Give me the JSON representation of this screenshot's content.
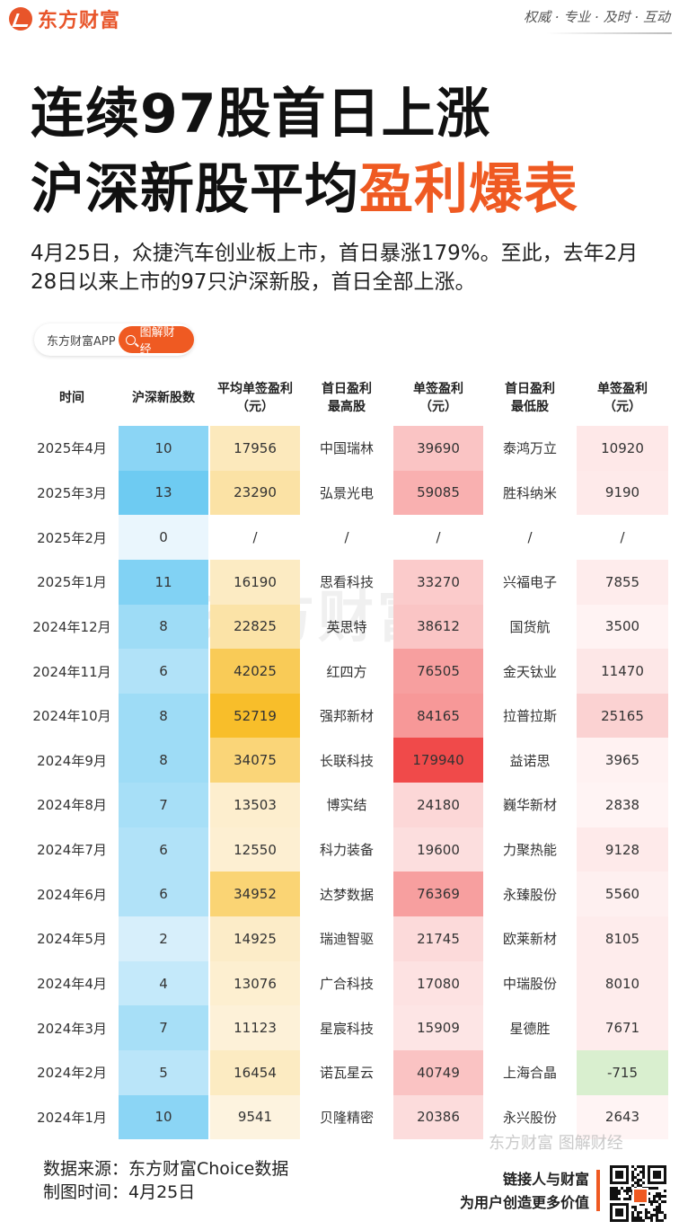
{
  "brand": {
    "logo_text": "东方财富",
    "slogan": "权威 · 专业 · 及时 · 互动"
  },
  "title": {
    "line1": "连续97股首日上涨",
    "line2_prefix": "沪深新股平均",
    "line2_highlight": "盈利爆表"
  },
  "subtitle": "4月25日，众捷汽车创业板上市，首日暴涨179%。至此，去年2月28日以来上市的97只沪深新股，首日全部上涨。",
  "app_badge": {
    "name": "东方财富APP",
    "button": "图解财经",
    "icon": "search-icon"
  },
  "watermark": {
    "center": "东方财富",
    "footer": "东方财富 图解财经"
  },
  "chart_data": {
    "type": "table",
    "columns": [
      {
        "key": "time",
        "label": "时间"
      },
      {
        "key": "count",
        "label": "沪深新股数"
      },
      {
        "key": "avg",
        "label": "平均单签盈利\n（元）"
      },
      {
        "key": "top",
        "label": "首日盈利\n最高股"
      },
      {
        "key": "top_profit",
        "label": "单签盈利\n（元）"
      },
      {
        "key": "low",
        "label": "首日盈利\n最低股"
      },
      {
        "key": "low_profit",
        "label": "单签盈利\n（元）"
      }
    ],
    "rows": [
      {
        "time": "2025年4月",
        "count": "10",
        "avg": "17956",
        "top": "中国瑞林",
        "top_profit": "39690",
        "low": "泰鸿万立",
        "low_profit": "10920"
      },
      {
        "time": "2025年3月",
        "count": "13",
        "avg": "23290",
        "top": "弘景光电",
        "top_profit": "59085",
        "low": "胜科纳米",
        "low_profit": "9190"
      },
      {
        "time": "2025年2月",
        "count": "0",
        "avg": "/",
        "top": "/",
        "top_profit": "/",
        "low": "/",
        "low_profit": "/"
      },
      {
        "time": "2025年1月",
        "count": "11",
        "avg": "16190",
        "top": "思看科技",
        "top_profit": "33270",
        "low": "兴福电子",
        "low_profit": "7855"
      },
      {
        "time": "2024年12月",
        "count": "8",
        "avg": "22825",
        "top": "英思特",
        "top_profit": "38612",
        "low": "国货航",
        "low_profit": "3500"
      },
      {
        "time": "2024年11月",
        "count": "6",
        "avg": "42025",
        "top": "红四方",
        "top_profit": "76505",
        "low": "金天钛业",
        "low_profit": "11470"
      },
      {
        "time": "2024年10月",
        "count": "8",
        "avg": "52719",
        "top": "强邦新材",
        "top_profit": "84165",
        "low": "拉普拉斯",
        "low_profit": "25165"
      },
      {
        "time": "2024年9月",
        "count": "8",
        "avg": "34075",
        "top": "长联科技",
        "top_profit": "179940",
        "low": "益诺思",
        "low_profit": "3965"
      },
      {
        "time": "2024年8月",
        "count": "7",
        "avg": "13503",
        "top": "博实结",
        "top_profit": "24180",
        "low": "巍华新材",
        "low_profit": "2838"
      },
      {
        "time": "2024年7月",
        "count": "6",
        "avg": "12550",
        "top": "科力装备",
        "top_profit": "19600",
        "low": "力聚热能",
        "low_profit": "9128"
      },
      {
        "time": "2024年6月",
        "count": "6",
        "avg": "34952",
        "top": "达梦数据",
        "top_profit": "76369",
        "low": "永臻股份",
        "low_profit": "5560"
      },
      {
        "time": "2024年5月",
        "count": "2",
        "avg": "14925",
        "top": "瑞迪智驱",
        "top_profit": "21745",
        "low": "欧莱新材",
        "low_profit": "8105"
      },
      {
        "time": "2024年4月",
        "count": "4",
        "avg": "13076",
        "top": "广合科技",
        "top_profit": "17080",
        "low": "中瑞股份",
        "low_profit": "8010"
      },
      {
        "time": "2024年3月",
        "count": "7",
        "avg": "11123",
        "top": "星宸科技",
        "top_profit": "15909",
        "low": "星德胜",
        "low_profit": "7671"
      },
      {
        "time": "2024年2月",
        "count": "5",
        "avg": "16454",
        "top": "诺瓦星云",
        "top_profit": "40749",
        "low": "上海合晶",
        "low_profit": "-715"
      },
      {
        "time": "2024年1月",
        "count": "10",
        "avg": "9541",
        "top": "贝隆精密",
        "top_profit": "20386",
        "low": "永兴股份",
        "low_profit": "2643"
      }
    ],
    "heat_colors": {
      "count": {
        "low": "#eaf6fd",
        "high": "#6ecbf2"
      },
      "avg": {
        "low": "#fdf3df",
        "high": "#f8be2a"
      },
      "top_profit": {
        "low": "#fde5e5",
        "high": "#f04a4a"
      },
      "low_profit": {
        "low": "#fff4f4",
        "high": "#fbd2d2"
      },
      "negative": "#d9efcf"
    }
  },
  "footer": {
    "source": "数据来源：东方财富Choice数据",
    "date": "制图时间：4月25日",
    "slogan1": "链接人与财富",
    "slogan2": "为用户创造更多价值"
  }
}
